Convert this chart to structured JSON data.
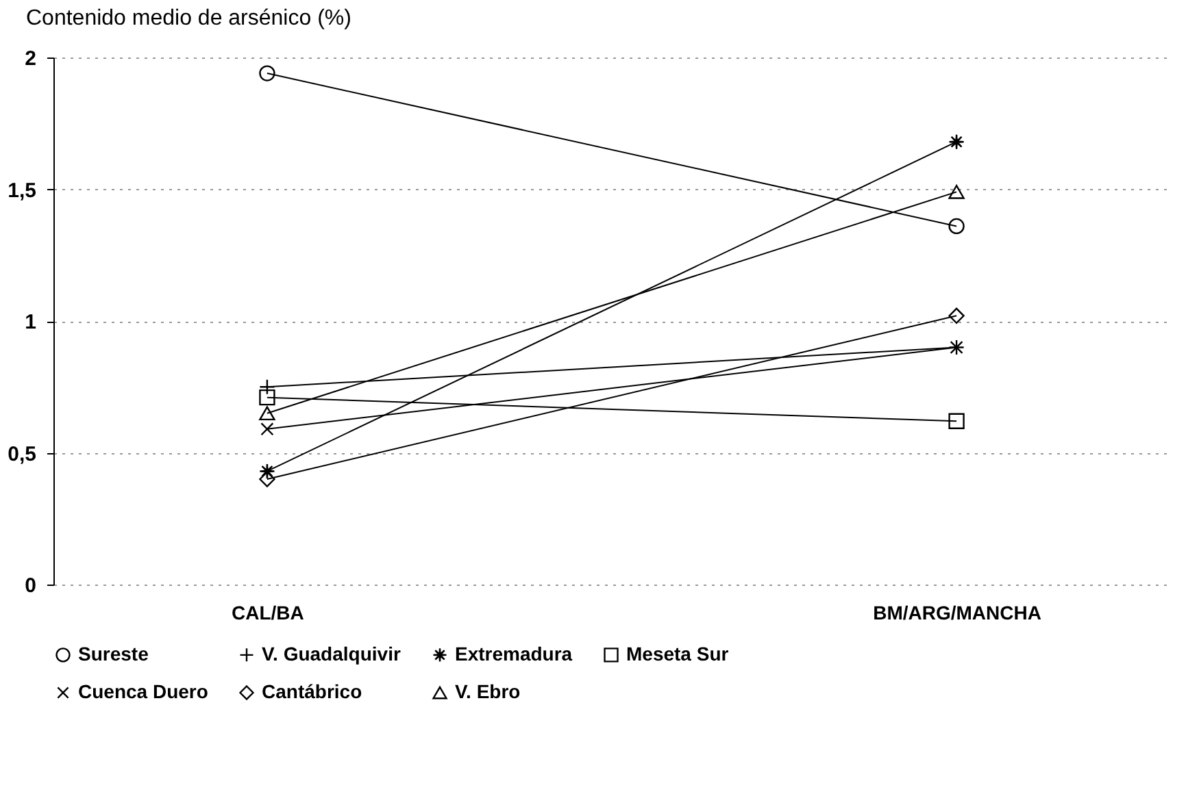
{
  "chart_data": {
    "type": "line",
    "title": "Contenido medio de arsénico (%)",
    "categories": [
      "CAL/BA",
      "BM/ARG/MANCHA"
    ],
    "series": [
      {
        "name": "Sureste",
        "color": "#000000",
        "marker": "circle",
        "values": [
          1.94,
          1.36
        ]
      },
      {
        "name": "V. Guadalquivir",
        "color": "#000000",
        "marker": "cross",
        "values": [
          0.75,
          0.9
        ]
      },
      {
        "name": "Extremadura",
        "color": "#000000",
        "marker": "star",
        "values": [
          0.43,
          1.68
        ]
      },
      {
        "name": "Meseta Sur",
        "color": "#000000",
        "marker": "square",
        "values": [
          0.71,
          0.62
        ]
      },
      {
        "name": "Cuenca Duero",
        "color": "#000000",
        "marker": "x",
        "values": [
          0.59,
          0.9
        ]
      },
      {
        "name": "Cantábrico",
        "color": "#000000",
        "marker": "diamond",
        "values": [
          0.4,
          1.02
        ]
      },
      {
        "name": "V. Ebro",
        "color": "#000000",
        "marker": "triangle",
        "values": [
          0.65,
          1.49
        ]
      }
    ],
    "ylim": [
      0,
      2
    ],
    "yticks": [
      0,
      {
        "value": 0.5,
        "label": "0,5"
      },
      1,
      {
        "value": 1.5,
        "label": "1,5"
      },
      2
    ],
    "grid": "y",
    "legend": "bottom",
    "line_style": "solid"
  }
}
